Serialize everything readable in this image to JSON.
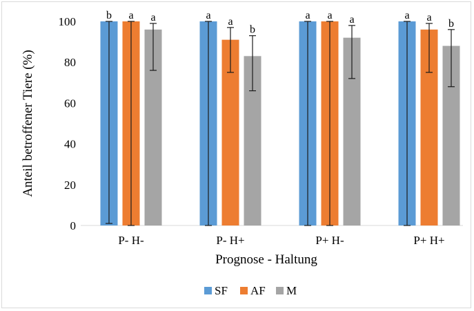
{
  "chart_data": {
    "type": "bar",
    "title": "",
    "xlabel": "Prognose - Haltung",
    "ylabel": "Anteil betroffener Tiere (%)",
    "ylim": [
      0,
      100
    ],
    "yticks": [
      0,
      20,
      40,
      60,
      80,
      100
    ],
    "grid": false,
    "legend_position": "bottom",
    "categories": [
      "P- H-",
      "P- H+",
      "P+ H-",
      "P+ H+"
    ],
    "series": [
      {
        "name": "SF",
        "color": "#5b9bd5",
        "values": [
          100,
          100,
          100,
          100
        ],
        "err_low": [
          1,
          0,
          0,
          0
        ],
        "err_high": [
          100,
          100,
          100,
          100
        ],
        "labels": [
          "b",
          "a",
          "a",
          "a"
        ]
      },
      {
        "name": "AF",
        "color": "#ed7d31",
        "values": [
          100,
          91,
          100,
          96
        ],
        "err_low": [
          0,
          75,
          0,
          75
        ],
        "err_high": [
          100,
          97,
          100,
          99
        ],
        "labels": [
          "a",
          "a",
          "a",
          "a"
        ]
      },
      {
        "name": "M",
        "color": "#a5a5a5",
        "values": [
          96,
          83,
          92,
          88
        ],
        "err_low": [
          76,
          66,
          72,
          68
        ],
        "err_high": [
          99,
          93,
          98,
          96
        ],
        "labels": [
          "a",
          "b",
          "a",
          "b"
        ]
      }
    ]
  }
}
